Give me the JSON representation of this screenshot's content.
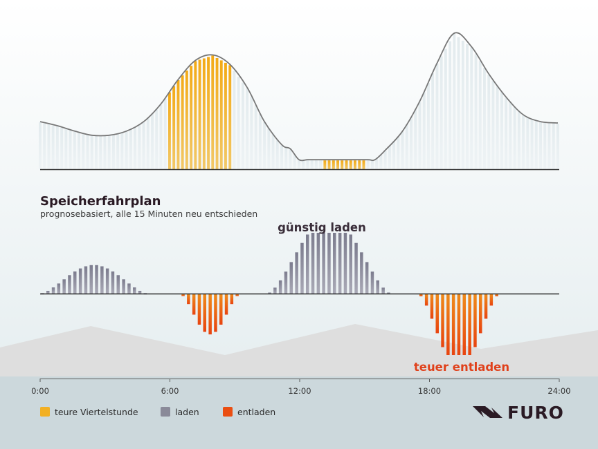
{
  "colors": {
    "expensive": "#f2b024",
    "charge": "#8a8a99",
    "discharge": "#ea4e12",
    "price_line": "#777777",
    "title": "#2a1a24",
    "discharge_text": "#e0401a",
    "charge_text": "#3a2e3a",
    "footer_bg": "#ccd8dc"
  },
  "chart_data": [
    {
      "type": "bar",
      "role": "price-forecast",
      "x_unit": "hour",
      "bar_step_hours": 0.25,
      "highlight_series": "teure Viertelstunde",
      "highlight_ranges": [
        [
          7.5,
          11.25
        ],
        [
          16.5,
          19.0
        ]
      ],
      "curve": [
        [
          0,
          0.35
        ],
        [
          1,
          0.32
        ],
        [
          2,
          0.28
        ],
        [
          3,
          0.25
        ],
        [
          4,
          0.25
        ],
        [
          5,
          0.28
        ],
        [
          6,
          0.35
        ],
        [
          7,
          0.48
        ],
        [
          8,
          0.66
        ],
        [
          9,
          0.8
        ],
        [
          10,
          0.84
        ],
        [
          11,
          0.77
        ],
        [
          12,
          0.6
        ],
        [
          13,
          0.35
        ],
        [
          14,
          0.18
        ],
        [
          14.5,
          0.15
        ],
        [
          15,
          0.07
        ],
        [
          15.5,
          0.07
        ],
        [
          16,
          0.07
        ],
        [
          17,
          0.07
        ],
        [
          18,
          0.07
        ],
        [
          19,
          0.07
        ],
        [
          19.4,
          0.07
        ],
        [
          20,
          0.14
        ],
        [
          21,
          0.28
        ],
        [
          22,
          0.5
        ],
        [
          23,
          0.78
        ],
        [
          24,
          1.0
        ],
        [
          25,
          0.9
        ],
        [
          26,
          0.7
        ],
        [
          27,
          0.53
        ],
        [
          28,
          0.4
        ],
        [
          29,
          0.35
        ],
        [
          30,
          0.34
        ]
      ],
      "x_range": [
        0,
        30
      ]
    },
    {
      "type": "bar",
      "role": "storage-schedule",
      "title": "Speicherfahrplan",
      "subtitle": "prognosebasiert, alle 15 Minuten neu entschieden",
      "x_unit": "hour",
      "bar_step_hours": 0.25,
      "x_range": [
        0,
        24
      ],
      "ticks": [
        "0:00",
        "6:00",
        "12:00",
        "18:00",
        "24:00"
      ],
      "series": [
        {
          "name": "laden",
          "segments": [
            {
              "start": 0.0,
              "end": 5.0,
              "peak": 0.47
            },
            {
              "start": 10.5,
              "end": 16.25,
              "peak": 1.0
            }
          ]
        },
        {
          "name": "entladen",
          "segments": [
            {
              "start": 6.5,
              "end": 9.25,
              "peak": -0.66
            },
            {
              "start": 17.5,
              "end": 21.25,
              "peak": -1.0
            }
          ]
        }
      ],
      "annotations": [
        {
          "text": "günstig laden",
          "x": 12.6
        },
        {
          "text": "teuer entladen",
          "x": 19.5
        }
      ]
    }
  ],
  "legend": [
    {
      "label": "teure Viertelstunde",
      "color_key": "expensive"
    },
    {
      "label": "laden",
      "color_key": "charge"
    },
    {
      "label": "entladen",
      "color_key": "discharge"
    }
  ],
  "brand": {
    "name": "FURO"
  }
}
